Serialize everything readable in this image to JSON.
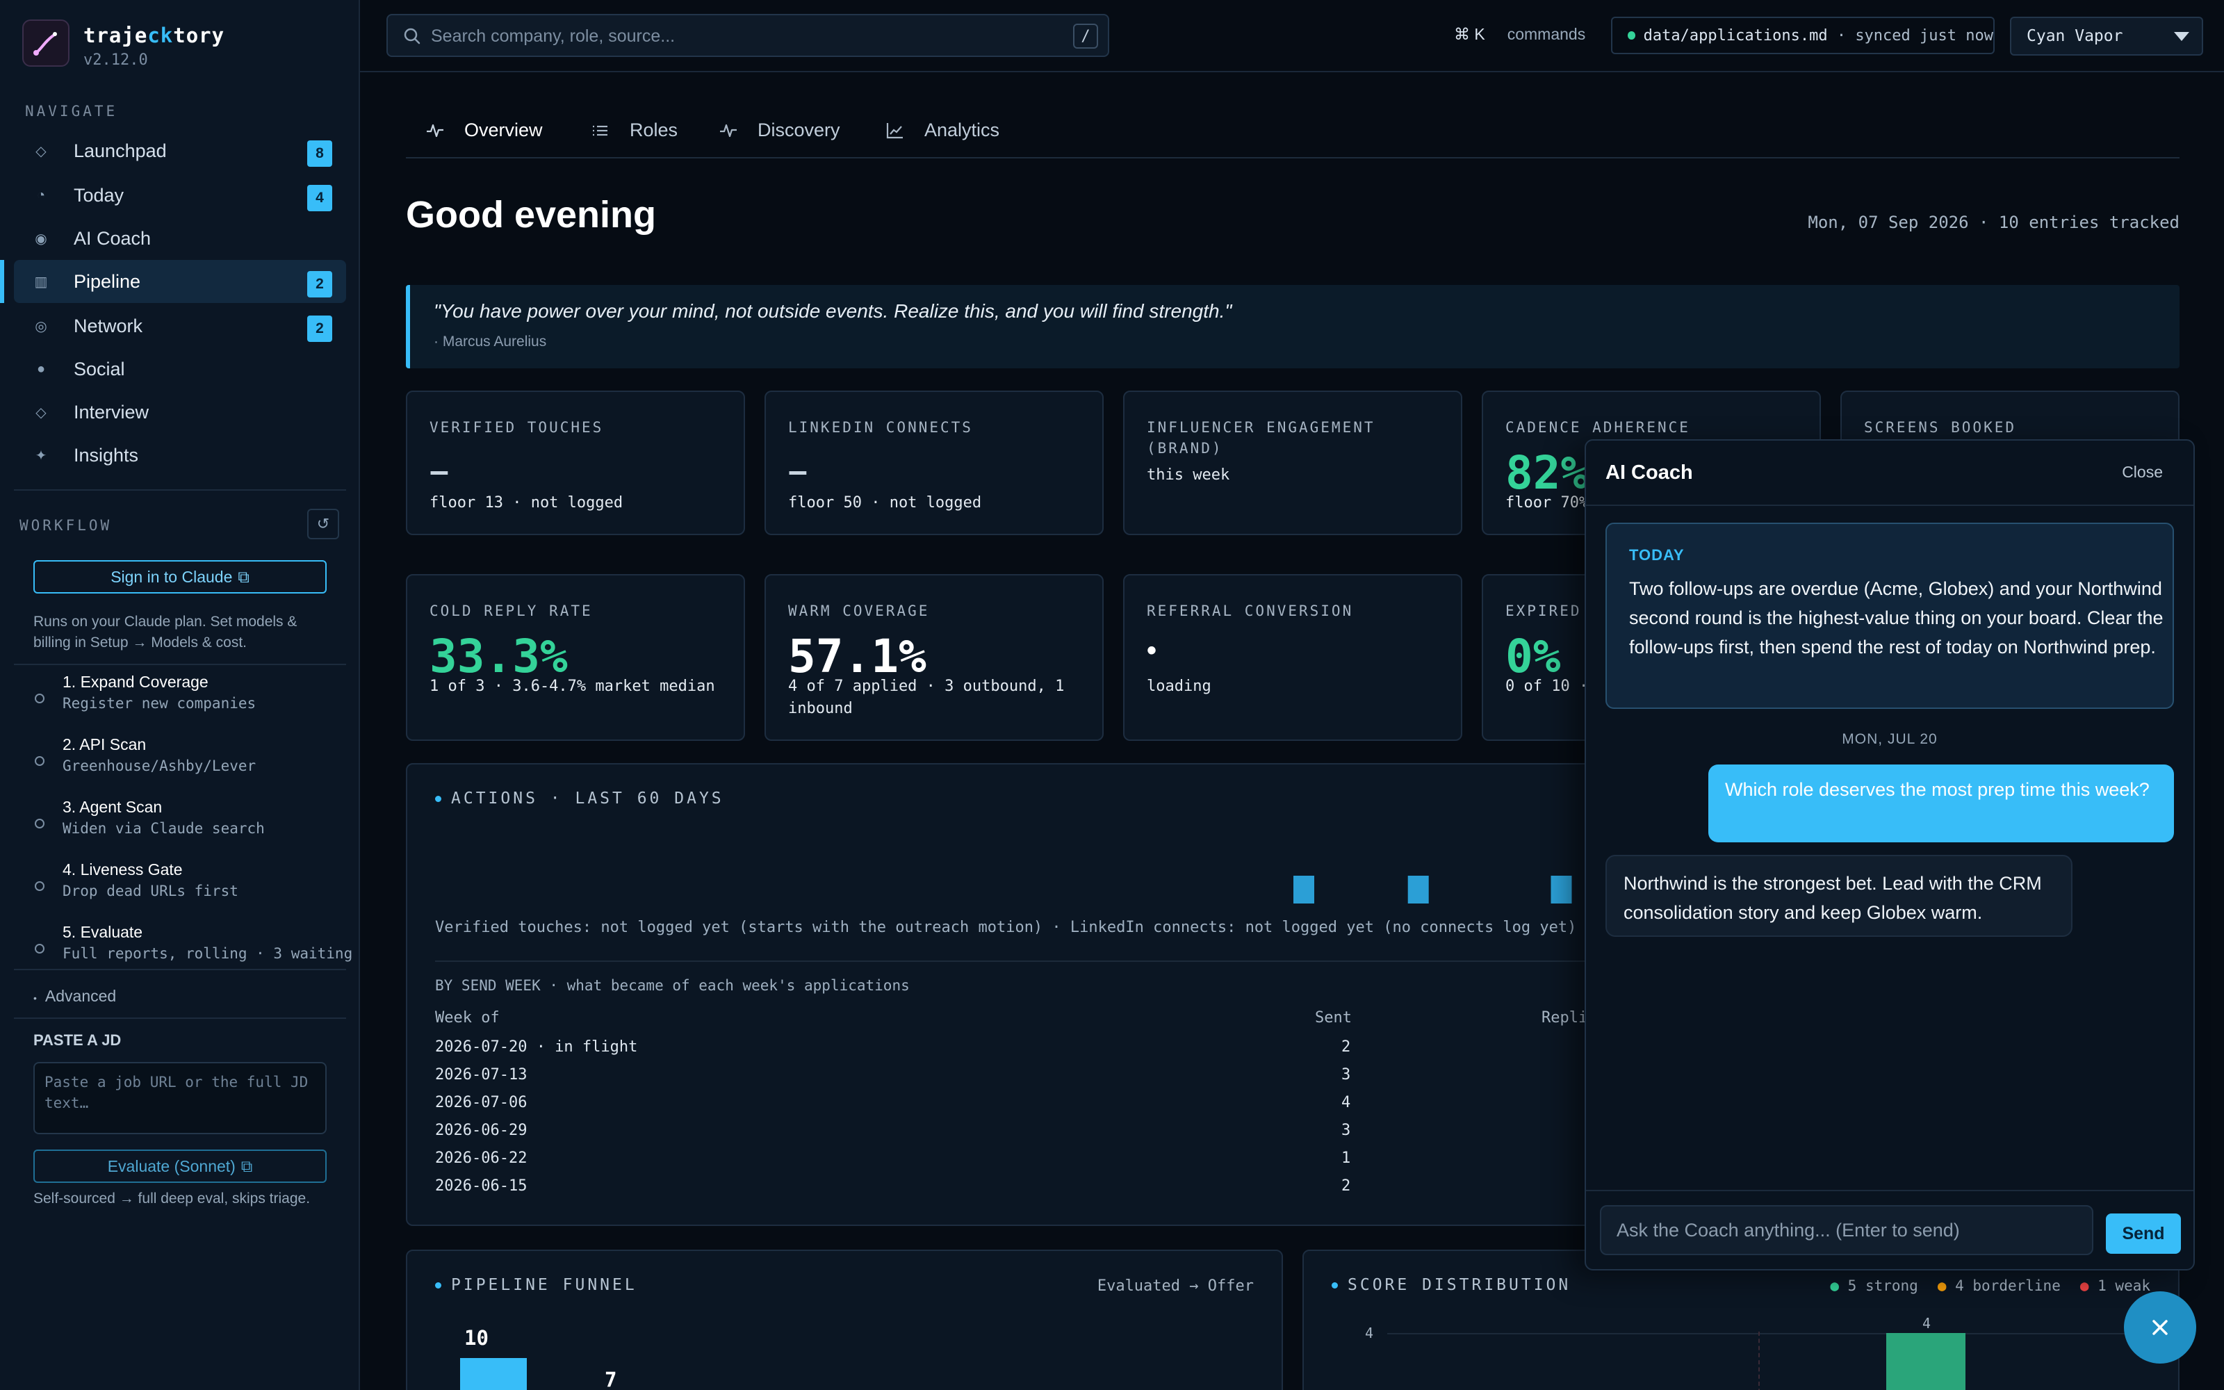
{
  "brand": {
    "name_a": "traje",
    "name_b": "ck",
    "name_c": "tory",
    "version": "v2.12.0"
  },
  "sidebar": {
    "navigate_label": "NAVIGATE",
    "nav": [
      {
        "label": "Launchpad",
        "count": "8",
        "icon": "diamond-icon"
      },
      {
        "label": "Today",
        "count": "4",
        "icon": "clock-icon"
      },
      {
        "label": "AI Coach",
        "count": "",
        "icon": "target-icon"
      },
      {
        "label": "Pipeline",
        "count": "2",
        "icon": "columns-icon",
        "active": true
      },
      {
        "label": "Network",
        "count": "2",
        "icon": "ring-icon"
      },
      {
        "label": "Social",
        "count": "",
        "icon": "dot-icon"
      },
      {
        "label": "Interview",
        "count": "",
        "icon": "diamond-icon"
      },
      {
        "label": "Insights",
        "count": "",
        "icon": "sparkle-icon"
      }
    ],
    "workflow_label": "WORKFLOW",
    "signin_label": "Sign in to Claude",
    "signin_note": "Runs on your Claude plan. Set models & billing in Setup → Models & cost.",
    "steps": [
      {
        "title": "1. Expand Coverage",
        "sub": "Register new companies"
      },
      {
        "title": "2. API Scan",
        "sub": "Greenhouse/Ashby/Lever"
      },
      {
        "title": "3. Agent Scan",
        "sub": "Widen via Claude search"
      },
      {
        "title": "4. Liveness Gate",
        "sub": "Drop dead URLs first"
      },
      {
        "title": "5. Evaluate",
        "sub": "Full reports, rolling · 3 waiting"
      }
    ],
    "advanced_label": "Advanced",
    "paste_label": "PASTE A JD",
    "jd_placeholder": "Paste a job URL or the full JD text…",
    "evaluate_label": "Evaluate (Sonnet)",
    "evaluate_note": "Self-sourced → full deep eval, skips triage."
  },
  "topbar": {
    "search_placeholder": "Search company, role, source...",
    "search_key": "/",
    "cmd_keys": "⌘ K",
    "cmd_label": "commands",
    "sync_path": "data/applications.md",
    "sync_status": " · synced just now",
    "theme": "Cyan Vapor"
  },
  "tabs": [
    "Overview",
    "Roles",
    "Discovery",
    "Analytics"
  ],
  "greeting": "Good evening",
  "date_line": "Mon, 07 Sep 2026 · 10 entries tracked",
  "quote": {
    "text": "\"You have power over your mind, not outside events. Realize this, and you will find strength.\"",
    "author": "· Marcus Aurelius"
  },
  "metrics_row1": [
    {
      "label": "VERIFIED TOUCHES",
      "value": "–",
      "sub": "floor 13 · not logged"
    },
    {
      "label": "LINKEDIN CONNECTS",
      "value": "–",
      "sub": "floor 50 · not logged"
    },
    {
      "label": "INFLUENCER ENGAGEMENT (BRAND)",
      "value": "",
      "sub": "this week"
    },
    {
      "label": "CADENCE ADHERENCE",
      "value": "82%",
      "sub": "floor 70%"
    },
    {
      "label": "SCREENS BOOKED",
      "value": "",
      "sub": ""
    }
  ],
  "metrics_row2": [
    {
      "label": "COLD REPLY RATE",
      "value": "33.3%",
      "sub": "1 of 3 · 3.6-4.7% market median"
    },
    {
      "label": "WARM COVERAGE",
      "value": "57.1%",
      "sub": "4 of 7 applied · 3 outbound, 1 inbound"
    },
    {
      "label": "REFERRAL CONVERSION",
      "value": "•",
      "sub": "loading"
    },
    {
      "label": "EXPIRED",
      "value": "0%",
      "sub": "0 of 10 ·"
    }
  ],
  "actions": {
    "title": "ACTIONS · LAST 60 DAYS",
    "note": "Verified touches: not logged yet (starts with the outreach motion) · LinkedIn connects: not logged yet (no connects log yet)",
    "subhead": "BY SEND WEEK · what became of each week's applications",
    "columns": [
      "Week of",
      "Sent",
      "Repli"
    ],
    "rows": [
      {
        "week": "2026-07-20 · in flight",
        "sent": "2"
      },
      {
        "week": "2026-07-13",
        "sent": "3"
      },
      {
        "week": "2026-07-06",
        "sent": "4"
      },
      {
        "week": "2026-06-29",
        "sent": "3"
      },
      {
        "week": "2026-06-22",
        "sent": "1"
      },
      {
        "week": "2026-06-15",
        "sent": "2"
      }
    ]
  },
  "chart_data": [
    {
      "type": "bar",
      "title": "ACTIONS · LAST 60 DAYS",
      "x_index": [
        30,
        34,
        39,
        47,
        51
      ],
      "values": [
        1,
        1,
        1,
        1,
        2
      ],
      "ylim": [
        0,
        2
      ],
      "grid": false
    },
    {
      "type": "bar",
      "title": "PIPELINE FUNNEL",
      "annotation": "Evaluated → Offer",
      "values": [
        10,
        7
      ]
    },
    {
      "type": "bar",
      "title": "SCORE DISTRIBUTION",
      "legend": [
        "5 strong",
        "4 borderline",
        "1 weak"
      ],
      "legend_colors": [
        "#34d399",
        "#f59e0b",
        "#ef4444"
      ],
      "y_tick": "4",
      "values": [
        4
      ]
    }
  ],
  "funnel": {
    "title": "PIPELINE FUNNEL",
    "note": "Evaluated → Offer",
    "bars": [
      "10",
      "7"
    ]
  },
  "score": {
    "title": "SCORE DISTRIBUTION",
    "legend": [
      "5 strong",
      "4 borderline",
      "1 weak"
    ],
    "ytick": "4",
    "bar_label": "4"
  },
  "coach": {
    "title": "AI Coach",
    "close": "Close",
    "today_tag": "TODAY",
    "today_text": "Two follow-ups are overdue (Acme, Globex) and your Northwind second round is the highest-value thing on your board. Clear the follow-ups first, then spend the rest of today on Northwind prep.",
    "day_sep": "MON, JUL 20",
    "user_msg": "Which role deserves the most prep time this week?",
    "ai_msg": "Northwind is the strongest bet. Lead with the CRM consolidation story and keep Globex warm.",
    "input_placeholder": "Ask the Coach anything... (Enter to send)",
    "send": "Send"
  },
  "colors": {
    "accent": "#38bdf8",
    "green": "#34d399",
    "background": "#060c14",
    "panel": "#0b1623"
  }
}
